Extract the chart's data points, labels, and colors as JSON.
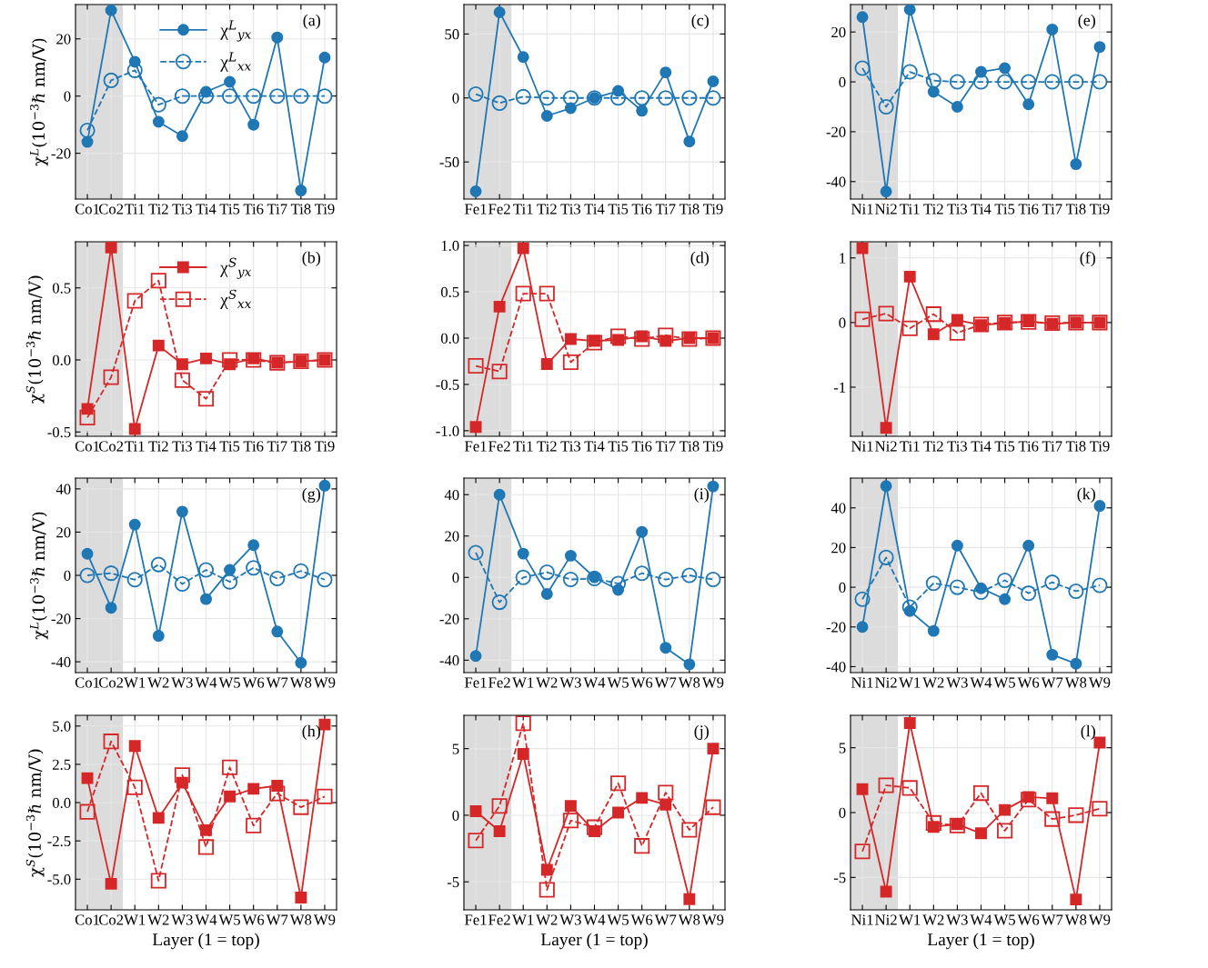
{
  "chart_data": [
    {
      "type": "line",
      "ylabel": "χ$^{L}$(10$^{−3}$ℏ nm/V)",
      "annotations": [
        "(a)"
      ],
      "categories": [
        "Co1",
        "Co2",
        "Ti1",
        "Ti2",
        "Ti3",
        "Ti4",
        "Ti5",
        "Ti6",
        "Ti7",
        "Ti8",
        "Ti9"
      ],
      "ylim": [
        -36,
        32
      ],
      "yticks": [
        -20,
        0,
        20
      ],
      "grid": true,
      "legend": "top",
      "marker": "circle",
      "bands": [
        {
          "axis": "x",
          "from": "Co1",
          "to": "Co2",
          "color": "#dcdcdc"
        }
      ],
      "series": [
        {
          "name": "χ$^{L}$$_{yx}$",
          "color": "#1f77b4",
          "line_style": "solid",
          "values": [
            -16,
            30,
            12,
            -9,
            -14,
            1.5,
            5,
            -10,
            20.5,
            -33,
            13.5
          ]
        },
        {
          "name": "χ$^{L}$$_{xx}$",
          "color": "#1f77b4",
          "line_style": "dashed",
          "values": [
            -12,
            5.5,
            9,
            -3,
            0,
            0,
            0,
            0,
            0,
            0,
            0
          ]
        }
      ]
    },
    {
      "type": "line",
      "annotations": [
        "(c)"
      ],
      "categories": [
        "Fe1",
        "Fe2",
        "Ti1",
        "Ti2",
        "Ti3",
        "Ti4",
        "Ti5",
        "Ti6",
        "Ti7",
        "Ti8",
        "Ti9"
      ],
      "ylim": [
        -79,
        73
      ],
      "yticks": [
        -50,
        0,
        50
      ],
      "grid": true,
      "marker": "circle",
      "bands": [
        {
          "axis": "x",
          "from": "Fe1",
          "to": "Fe2",
          "color": "#dcdcdc"
        }
      ],
      "series": [
        {
          "color": "#1f77b4",
          "line_style": "solid",
          "values": [
            -73,
            67,
            32,
            -14,
            -8,
            0,
            5.5,
            -10,
            20,
            -34,
            13
          ]
        },
        {
          "color": "#1f77b4",
          "line_style": "dashed",
          "values": [
            3,
            -4,
            1,
            0,
            0,
            0,
            0,
            0,
            0,
            0,
            0
          ]
        }
      ]
    },
    {
      "type": "line",
      "annotations": [
        "(e)"
      ],
      "categories": [
        "Ni1",
        "Ni2",
        "Ti1",
        "Ti2",
        "Ti3",
        "Ti4",
        "Ti5",
        "Ti6",
        "Ti7",
        "Ti8",
        "Ti9"
      ],
      "ylim": [
        -47,
        31
      ],
      "yticks": [
        -40,
        -20,
        0,
        20
      ],
      "grid": true,
      "marker": "circle",
      "bands": [
        {
          "axis": "x",
          "from": "Ni1",
          "to": "Ni2",
          "color": "#dcdcdc"
        }
      ],
      "series": [
        {
          "color": "#1f77b4",
          "line_style": "solid",
          "values": [
            26,
            -44,
            29,
            -4,
            -10,
            4,
            5.5,
            -9,
            21,
            -33,
            14
          ]
        },
        {
          "color": "#1f77b4",
          "line_style": "dashed",
          "values": [
            5.5,
            -10,
            4,
            0.5,
            0,
            0,
            0,
            0,
            0,
            0,
            0
          ]
        }
      ]
    },
    {
      "type": "line",
      "ylabel": "χ$^{S}$(10$^{−3}$ℏ nm/V)",
      "annotations": [
        "(b)"
      ],
      "categories": [
        "Co1",
        "Co2",
        "Ti1",
        "Ti2",
        "Ti3",
        "Ti4",
        "Ti5",
        "Ti6",
        "Ti7",
        "Ti8",
        "Ti9"
      ],
      "ylim": [
        -0.53,
        0.82
      ],
      "yticks": [
        -0.5,
        {
          "value": 0,
          "label": "0.0"
        },
        0.5
      ],
      "grid": true,
      "legend": "top",
      "marker": "square",
      "bands": [
        {
          "axis": "x",
          "from": "Co1",
          "to": "Co2",
          "color": "#dcdcdc"
        }
      ],
      "series": [
        {
          "name": "χ$^{S}$$_{yx}$",
          "color": "#d62728",
          "line_style": "solid",
          "values": [
            -0.34,
            0.78,
            -0.48,
            0.1,
            -0.03,
            0.01,
            -0.03,
            0.01,
            -0.02,
            -0.01,
            0
          ]
        },
        {
          "name": "χ$^{S}$$_{xx}$",
          "color": "#d62728",
          "line_style": "dashed",
          "values": [
            -0.4,
            -0.12,
            0.41,
            0.55,
            -0.14,
            -0.27,
            0.0,
            0.0,
            -0.02,
            -0.01,
            0
          ]
        }
      ]
    },
    {
      "type": "line",
      "annotations": [
        "(d)"
      ],
      "categories": [
        "Fe1",
        "Fe2",
        "Ti1",
        "Ti2",
        "Ti3",
        "Ti4",
        "Ti5",
        "Ti6",
        "Ti7",
        "Ti8",
        "Ti9"
      ],
      "ylim": [
        -1.06,
        1.04
      ],
      "yticks": [
        {
          "value": -1,
          "label": "-1.0"
        },
        -0.5,
        {
          "value": 0,
          "label": "0.0"
        },
        0.5,
        {
          "value": 1,
          "label": "1.0"
        }
      ],
      "grid": true,
      "marker": "square",
      "bands": [
        {
          "axis": "x",
          "from": "Fe1",
          "to": "Fe2",
          "color": "#dcdcdc"
        }
      ],
      "series": [
        {
          "color": "#d62728",
          "line_style": "solid",
          "values": [
            -0.96,
            0.34,
            0.97,
            -0.28,
            -0.01,
            -0.03,
            -0.02,
            0.02,
            -0.03,
            0.0,
            0.0
          ]
        },
        {
          "color": "#d62728",
          "line_style": "dashed",
          "values": [
            -0.3,
            -0.36,
            0.48,
            0.48,
            -0.26,
            -0.05,
            0.02,
            -0.01,
            0.03,
            -0.01,
            0
          ]
        }
      ]
    },
    {
      "type": "line",
      "annotations": [
        "(f)"
      ],
      "categories": [
        "Ni1",
        "Ni2",
        "Ti1",
        "Ti2",
        "Ti3",
        "Ti4",
        "Ti5",
        "Ti6",
        "Ti7",
        "Ti8",
        "Ti9"
      ],
      "ylim": [
        -1.76,
        1.25
      ],
      "yticks": [
        -1,
        0,
        1
      ],
      "grid": true,
      "marker": "square",
      "bands": [
        {
          "axis": "x",
          "from": "Ni1",
          "to": "Ni2",
          "color": "#dcdcdc"
        }
      ],
      "series": [
        {
          "color": "#d62728",
          "line_style": "solid",
          "values": [
            1.15,
            -1.63,
            0.71,
            -0.18,
            0.04,
            -0.04,
            -0.01,
            0.02,
            -0.02,
            0.0,
            0.0
          ]
        },
        {
          "color": "#d62728",
          "line_style": "dashed",
          "values": [
            0.05,
            0.14,
            -0.09,
            0.13,
            -0.16,
            -0.03,
            0.0,
            0.01,
            -0.01,
            0.0,
            0.0
          ]
        }
      ]
    },
    {
      "type": "line",
      "ylabel": "χ$^{L}$(10$^{−3}$ℏ nm/V)",
      "annotations": [
        "(g)"
      ],
      "categories": [
        "Co1",
        "Co2",
        "W1",
        "W2",
        "W3",
        "W4",
        "W5",
        "W6",
        "W7",
        "W8",
        "W9"
      ],
      "ylim": [
        -45,
        45
      ],
      "yticks": [
        -40,
        -20,
        0,
        20,
        40
      ],
      "grid": true,
      "marker": "circle",
      "bands": [
        {
          "axis": "x",
          "from": "Co1",
          "to": "Co2",
          "color": "#dcdcdc"
        }
      ],
      "series": [
        {
          "color": "#1f77b4",
          "line_style": "solid",
          "values": [
            10,
            -15,
            23.5,
            -28,
            29.5,
            -11,
            2.5,
            14,
            -26,
            -40.5,
            41.5
          ]
        },
        {
          "color": "#1f77b4",
          "line_style": "dashed",
          "values": [
            0,
            1,
            -2,
            5,
            -4,
            2.5,
            -3,
            3.5,
            -1.5,
            2,
            -2
          ]
        }
      ]
    },
    {
      "type": "line",
      "annotations": [
        "(i)"
      ],
      "categories": [
        "Fe1",
        "Fe2",
        "W1",
        "W2",
        "W3",
        "W4",
        "W5",
        "W6",
        "W7",
        "W8",
        "W9"
      ],
      "ylim": [
        -46,
        48
      ],
      "yticks": [
        -40,
        -20,
        0,
        20,
        40
      ],
      "grid": true,
      "marker": "circle",
      "bands": [
        {
          "axis": "x",
          "from": "Fe1",
          "to": "Fe2",
          "color": "#dcdcdc"
        }
      ],
      "series": [
        {
          "color": "#1f77b4",
          "line_style": "solid",
          "values": [
            -38,
            40,
            11.5,
            -8,
            10.5,
            0,
            -6,
            22,
            -34,
            -42,
            44
          ]
        },
        {
          "color": "#1f77b4",
          "line_style": "dashed",
          "values": [
            12,
            -12,
            0,
            2.5,
            -1,
            -0.5,
            -3,
            2,
            -1,
            1,
            -1
          ]
        }
      ]
    },
    {
      "type": "line",
      "annotations": [
        "(k)"
      ],
      "categories": [
        "Ni1",
        "Ni2",
        "W1",
        "W2",
        "W3",
        "W4",
        "W5",
        "W6",
        "W7",
        "W8",
        "W9"
      ],
      "ylim": [
        -43,
        55
      ],
      "yticks": [
        -40,
        -20,
        0,
        20,
        40
      ],
      "grid": true,
      "marker": "circle",
      "bands": [
        {
          "axis": "x",
          "from": "Ni1",
          "to": "Ni2",
          "color": "#dcdcdc"
        }
      ],
      "series": [
        {
          "color": "#1f77b4",
          "line_style": "solid",
          "values": [
            -20,
            51,
            -12,
            -22,
            21,
            -0.5,
            -6,
            21,
            -34,
            -38.5,
            41
          ]
        },
        {
          "color": "#1f77b4",
          "line_style": "dashed",
          "values": [
            -6,
            15,
            -10,
            2,
            0,
            -2.5,
            3.5,
            -3,
            2.5,
            -2,
            1
          ]
        }
      ]
    },
    {
      "type": "line",
      "ylabel": "χ$^{S}$(10$^{−3}$ℏ nm/V)",
      "xlabel": "Layer (1 = top)",
      "annotations": [
        "(h)"
      ],
      "categories": [
        "Co1",
        "Co2",
        "W1",
        "W2",
        "W3",
        "W4",
        "W5",
        "W6",
        "W7",
        "W8",
        "W9"
      ],
      "ylim": [
        -7.0,
        5.7
      ],
      "yticks": [
        {
          "value": -5,
          "label": "-5.0"
        },
        -2.5,
        {
          "value": 0,
          "label": "0.0"
        },
        2.5,
        {
          "value": 5,
          "label": "5.0"
        }
      ],
      "grid": true,
      "marker": "square",
      "bands": [
        {
          "axis": "x",
          "from": "Co1",
          "to": "Co2",
          "color": "#dcdcdc"
        }
      ],
      "series": [
        {
          "color": "#d62728",
          "line_style": "solid",
          "values": [
            1.6,
            -5.3,
            3.7,
            -1.0,
            1.3,
            -1.8,
            0.4,
            0.9,
            1.1,
            -6.2,
            5.1
          ]
        },
        {
          "color": "#d62728",
          "line_style": "dashed",
          "values": [
            -0.6,
            4.0,
            1.0,
            -5.1,
            1.8,
            -2.9,
            2.3,
            -1.5,
            0.6,
            -0.3,
            0.4
          ]
        }
      ]
    },
    {
      "type": "line",
      "xlabel": "Layer (1 = top)",
      "annotations": [
        "(j)"
      ],
      "categories": [
        "Fe1",
        "Fe2",
        "W1",
        "W2",
        "W3",
        "W4",
        "W5",
        "W6",
        "W7",
        "W8",
        "W9"
      ],
      "ylim": [
        -7.1,
        7.5
      ],
      "yticks": [
        -5,
        0,
        5
      ],
      "grid": true,
      "marker": "square",
      "bands": [
        {
          "axis": "x",
          "from": "Fe1",
          "to": "Fe2",
          "color": "#dcdcdc"
        }
      ],
      "series": [
        {
          "color": "#d62728",
          "line_style": "solid",
          "values": [
            0.3,
            -1.2,
            4.6,
            -4.1,
            0.7,
            -1.2,
            0.2,
            1.3,
            0.8,
            -6.3,
            5.0
          ]
        },
        {
          "color": "#d62728",
          "line_style": "dashed",
          "values": [
            -1.9,
            0.7,
            6.9,
            -5.6,
            -0.4,
            -0.9,
            2.4,
            -2.3,
            1.7,
            -1.1,
            0.6
          ]
        }
      ]
    },
    {
      "type": "line",
      "xlabel": "Layer (1 = top)",
      "annotations": [
        "(l)"
      ],
      "categories": [
        "Ni1",
        "Ni2",
        "W1",
        "W2",
        "W3",
        "W4",
        "W5",
        "W6",
        "W7",
        "W8",
        "W9"
      ],
      "ylim": [
        -7.5,
        7.5
      ],
      "yticks": [
        -5,
        0,
        5
      ],
      "grid": true,
      "marker": "square",
      "bands": [
        {
          "axis": "x",
          "from": "Ni1",
          "to": "Ni2",
          "color": "#dcdcdc"
        }
      ],
      "series": [
        {
          "color": "#d62728",
          "line_style": "solid",
          "values": [
            1.8,
            -6.1,
            6.9,
            -1.1,
            -0.9,
            -1.6,
            0.2,
            1.2,
            1.1,
            -6.7,
            5.4
          ]
        },
        {
          "color": "#d62728",
          "line_style": "dashed",
          "values": [
            -3.0,
            2.1,
            1.9,
            -0.8,
            -1.0,
            1.5,
            -1.4,
            1.0,
            -0.5,
            -0.2,
            0.3
          ]
        }
      ]
    }
  ]
}
